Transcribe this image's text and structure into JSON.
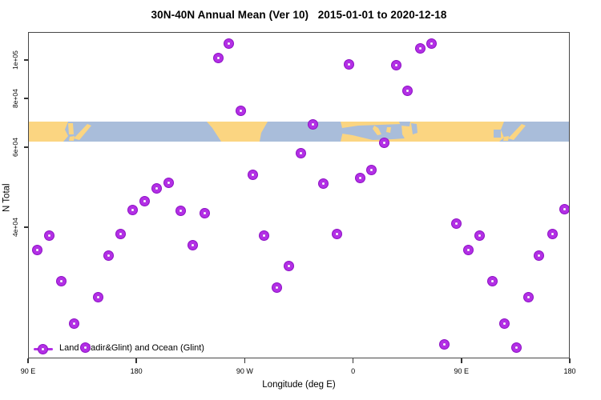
{
  "title": "30N-40N Annual Mean (Ver 10)   2015-01-01 to 2020-12-18",
  "x_axis": {
    "label": "Longitude (deg E)",
    "tick_labels": [
      "90 E",
      "180",
      "90 W",
      "0",
      "90 E",
      "180"
    ]
  },
  "y_axis": {
    "label": "N Total",
    "scale": "log",
    "tick_labels": [
      "1e+05",
      "8e+04",
      "6e+04",
      "4e+04"
    ],
    "tick_values": [
      100000,
      80000,
      60000,
      40000
    ]
  },
  "legend": {
    "label": "Land (Nadir&Glint) and Ocean (Glint)",
    "symbol": "open-circle-on-line"
  },
  "colors": {
    "point_ring": "#b32ee6",
    "point_edge": "#8d13c4",
    "land": "#fbd581",
    "ocean": "#a9bdda",
    "frame": "#474747",
    "text": "#000000",
    "background": "#ffffff"
  },
  "map_band": {
    "description": "world coastline strip for 30N-40N latitude band",
    "regions": [
      "east-asia",
      "japan",
      "korea",
      "north-america",
      "north-africa-eurasia",
      "mediterranean-sea",
      "black-sea",
      "caspian-sea",
      "pacific-ocean",
      "atlantic-ocean"
    ]
  },
  "chart_data": {
    "type": "scatter",
    "title": "30N-40N Annual Mean (Ver 10)   2015-01-01 to 2020-12-18",
    "xlabel": "Longitude (deg E)",
    "ylabel": "N Total",
    "x_axis_degrees_span": [
      90,
      540
    ],
    "x_tick_degrees": [
      90,
      180,
      270,
      360,
      450,
      540
    ],
    "y_scale": "log",
    "ylim_approx": [
      18000,
      120000
    ],
    "grid": false,
    "legend_position": "bottom-left-inside",
    "points": [
      {
        "lon": 97.5,
        "n": 35600
      },
      {
        "lon": 107.5,
        "n": 38400
      },
      {
        "lon": 117.5,
        "n": 30400
      },
      {
        "lon": 128.0,
        "n": 24500
      },
      {
        "lon": 137.5,
        "n": 21700
      },
      {
        "lon": 148.0,
        "n": 28100
      },
      {
        "lon": 157.0,
        "n": 34700
      },
      {
        "lon": 167.0,
        "n": 38600
      },
      {
        "lon": 177.0,
        "n": 43700
      },
      {
        "lon": 187.0,
        "n": 45600
      },
      {
        "lon": 197.0,
        "n": 48600
      },
      {
        "lon": 207.0,
        "n": 50000
      },
      {
        "lon": 216.5,
        "n": 43400
      },
      {
        "lon": 226.5,
        "n": 36500
      },
      {
        "lon": 236.5,
        "n": 43000
      },
      {
        "lon": 248.0,
        "n": 101000
      },
      {
        "lon": 257.0,
        "n": 110000
      },
      {
        "lon": 266.5,
        "n": 74200
      },
      {
        "lon": 276.5,
        "n": 52100
      },
      {
        "lon": 286.0,
        "n": 38400
      },
      {
        "lon": 296.5,
        "n": 29500
      },
      {
        "lon": 306.5,
        "n": 32800
      },
      {
        "lon": 316.5,
        "n": 58100
      },
      {
        "lon": 326.5,
        "n": 68500
      },
      {
        "lon": 335.0,
        "n": 49800
      },
      {
        "lon": 346.5,
        "n": 38700
      },
      {
        "lon": 356.5,
        "n": 97300
      },
      {
        "lon": 366.0,
        "n": 51400
      },
      {
        "lon": 375.5,
        "n": 53400
      },
      {
        "lon": 386.0,
        "n": 61700
      },
      {
        "lon": 396.0,
        "n": 96800
      },
      {
        "lon": 405.5,
        "n": 83800
      },
      {
        "lon": 416.0,
        "n": 107000
      },
      {
        "lon": 425.5,
        "n": 110000
      },
      {
        "lon": 436.0,
        "n": 22100
      },
      {
        "lon": 445.5,
        "n": 40800
      },
      {
        "lon": 455.5,
        "n": 35700
      },
      {
        "lon": 465.0,
        "n": 38400
      },
      {
        "lon": 475.5,
        "n": 30400
      },
      {
        "lon": 485.5,
        "n": 24500
      },
      {
        "lon": 495.5,
        "n": 21700
      },
      {
        "lon": 505.5,
        "n": 28100
      },
      {
        "lon": 514.5,
        "n": 34700
      },
      {
        "lon": 525.5,
        "n": 38600
      },
      {
        "lon": 535.5,
        "n": 43900
      }
    ]
  }
}
